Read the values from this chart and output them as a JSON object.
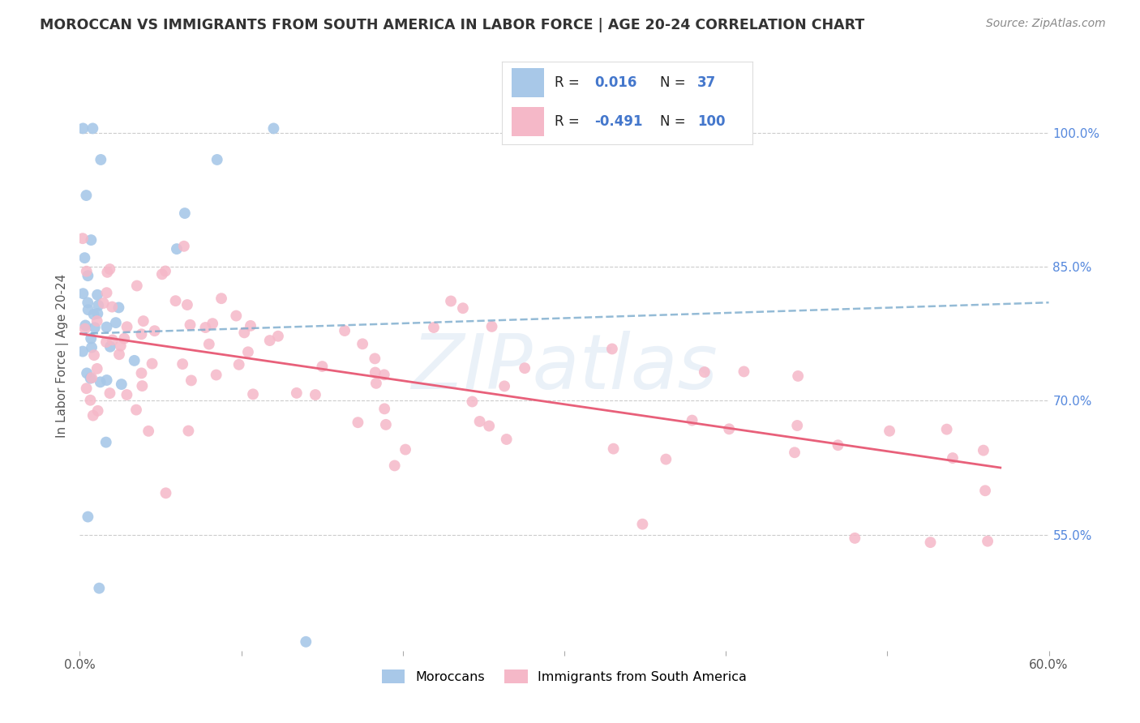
{
  "title": "MOROCCAN VS IMMIGRANTS FROM SOUTH AMERICA IN LABOR FORCE | AGE 20-24 CORRELATION CHART",
  "source": "Source: ZipAtlas.com",
  "ylabel": "In Labor Force | Age 20-24",
  "xlim": [
    0.0,
    0.6
  ],
  "ylim": [
    0.42,
    1.08
  ],
  "xtick_vals": [
    0.0,
    0.1,
    0.2,
    0.3,
    0.4,
    0.5,
    0.6
  ],
  "xticklabels": [
    "0.0%",
    "",
    "",
    "",
    "",
    "",
    "60.0%"
  ],
  "ytick_right_vals": [
    0.55,
    0.7,
    0.85,
    1.0
  ],
  "ytick_right_labels": [
    "55.0%",
    "70.0%",
    "85.0%",
    "100.0%"
  ],
  "R_moroccan": 0.016,
  "N_moroccan": 37,
  "R_sa": -0.491,
  "N_sa": 100,
  "color_moroccan": "#a8c8e8",
  "color_moroccan_line": "#7aaacc",
  "color_sa": "#f5b8c8",
  "color_sa_line": "#e8607a",
  "color_r_text": "#4477cc",
  "color_n_text": "#4477cc",
  "background": "#ffffff",
  "grid_color": "#cccccc",
  "watermark_text": "ZIPatlas",
  "watermark_color": "#dde8f4",
  "mor_line_y0": 0.775,
  "mor_line_y1": 0.81,
  "sa_line_y0": 0.775,
  "sa_line_y1": 0.625
}
